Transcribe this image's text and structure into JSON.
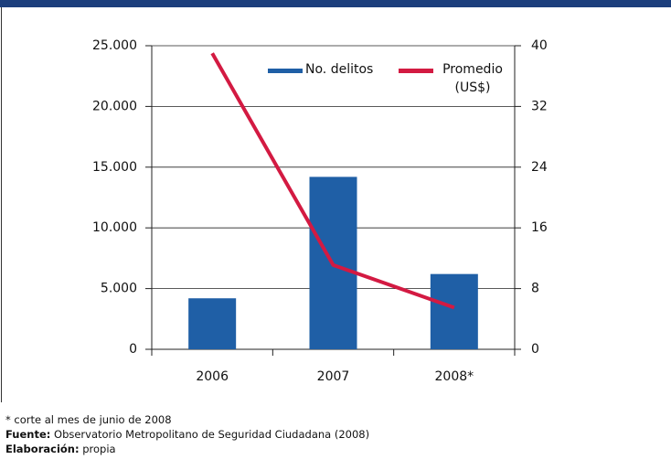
{
  "chart_data": {
    "type": "bar",
    "categories": [
      "2006",
      "2007",
      "2008*"
    ],
    "series": [
      {
        "name": "No. delitos",
        "color": "#1f5fa6",
        "values": [
          4200,
          14200,
          6200
        ]
      },
      {
        "name": "Promedio (US$)",
        "color": "#d31a42",
        "type": "line",
        "axis": "y2",
        "values": [
          39,
          11.1,
          5.5
        ]
      }
    ],
    "ylim": [
      0,
      25000
    ],
    "yticks": [
      0,
      {
        "value": 5000,
        "label": "5.000"
      },
      {
        "value": 10000,
        "label": "10.000"
      },
      {
        "value": 15000,
        "label": "15.000"
      },
      {
        "value": 20000,
        "label": "20.000"
      },
      {
        "value": 25000,
        "label": "25.000"
      }
    ],
    "y2lim": [
      0,
      40
    ],
    "y2ticks": [
      0,
      8,
      16,
      24,
      32,
      40
    ],
    "grid": true,
    "legend": "top-right"
  },
  "notes": {
    "asterisk": "* corte al mes de junio de 2008",
    "source_label": "Fuente:",
    "source": "Observatorio Metropolitano de Seguridad Ciudadana (2008)",
    "made_label": "Elaboración:",
    "made": "propia"
  }
}
